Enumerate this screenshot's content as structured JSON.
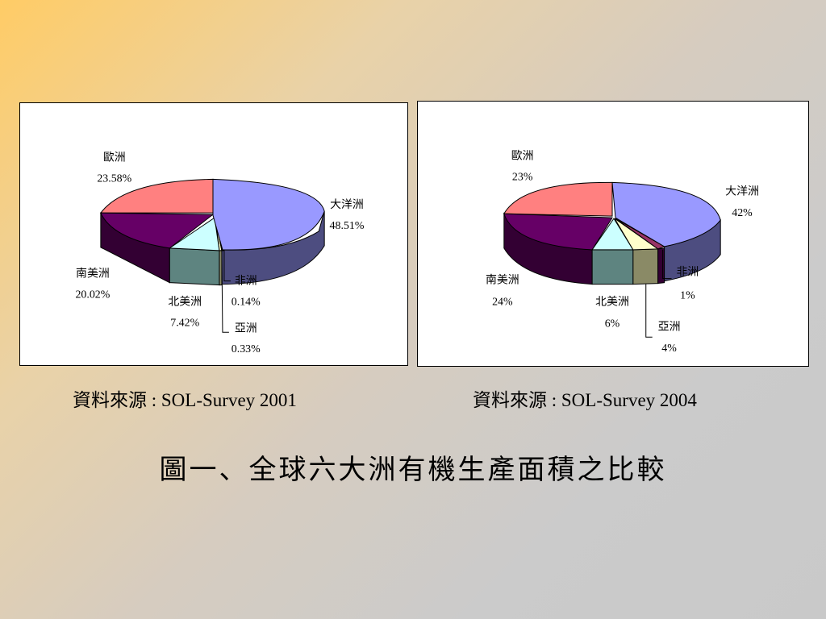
{
  "colors": {
    "oceania": "#9999ff",
    "europe": "#ff8080",
    "south_america": "#660066",
    "north_america_top": "#ccffff",
    "north_america_side": "#5e8480",
    "asia": "#ffffcc",
    "asia_side": "#8a8a66",
    "africa": "#993366"
  },
  "source_left": "資料來源 : SOL-Survey 2001",
  "source_right": "資料來源 : SOL-Survey 2004",
  "caption": "圖一、全球六大洲有機生產面積之比較",
  "chart_data": [
    {
      "type": "pie",
      "title": "",
      "labels": [
        {
          "name": "大洋洲",
          "pct_label": "48.51%"
        },
        {
          "name": "非洲",
          "pct_label": "0.14%"
        },
        {
          "name": "亞洲",
          "pct_label": "0.33%"
        },
        {
          "name": "北美洲",
          "pct_label": "7.42%"
        },
        {
          "name": "南美洲",
          "pct_label": "20.02%"
        },
        {
          "name": "歐洲",
          "pct_label": "23.58%"
        }
      ],
      "values": [
        48.51,
        0.14,
        0.33,
        7.42,
        20.02,
        23.58
      ],
      "style": "3d-exploded"
    },
    {
      "type": "pie",
      "title": "",
      "labels": [
        {
          "name": "大洋洲",
          "pct_label": "42%"
        },
        {
          "name": "非洲",
          "pct_label": "1%"
        },
        {
          "name": "亞洲",
          "pct_label": "4%"
        },
        {
          "name": "北美洲",
          "pct_label": "6%"
        },
        {
          "name": "南美洲",
          "pct_label": "24%"
        },
        {
          "name": "歐洲",
          "pct_label": "23%"
        }
      ],
      "values": [
        42,
        1,
        4,
        6,
        24,
        23
      ],
      "style": "3d-exploded"
    }
  ]
}
